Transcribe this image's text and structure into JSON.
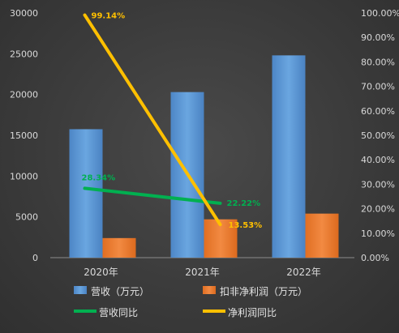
{
  "chart_data": {
    "type": "bar",
    "categories": [
      "2020年",
      "2021年",
      "2022年"
    ],
    "series": [
      {
        "name": "营收（万元）",
        "kind": "bar",
        "axis": "left",
        "color": "#5b9bd5",
        "values": [
          15750,
          20300,
          24800
        ]
      },
      {
        "name": "扣非净利润（万元）",
        "kind": "bar",
        "axis": "left",
        "color": "#ed7d31",
        "values": [
          2400,
          4700,
          5400
        ]
      },
      {
        "name": "营收同比",
        "kind": "line",
        "axis": "right",
        "color": "#00b050",
        "values": [
          28.34,
          22.22,
          null
        ],
        "labels": [
          "28.34%",
          "22.22%",
          ""
        ]
      },
      {
        "name": "净利润同比",
        "kind": "line",
        "axis": "right",
        "color": "#ffc000",
        "values": [
          99.14,
          13.53,
          null
        ],
        "labels": [
          "99.14%",
          "13.53%",
          ""
        ]
      }
    ],
    "y_left": {
      "min": 0,
      "max": 30000,
      "step": 5000,
      "ticks": [
        "0",
        "5000",
        "10000",
        "15000",
        "20000",
        "25000",
        "30000"
      ]
    },
    "y_right": {
      "min": 0,
      "max": 100,
      "step": 10,
      "ticks": [
        "0.00%",
        "10.00%",
        "20.00%",
        "30.00%",
        "40.00%",
        "50.00%",
        "60.00%",
        "70.00%",
        "80.00%",
        "90.00%",
        "100.00%"
      ]
    },
    "legend_position": "bottom",
    "grid": false
  }
}
